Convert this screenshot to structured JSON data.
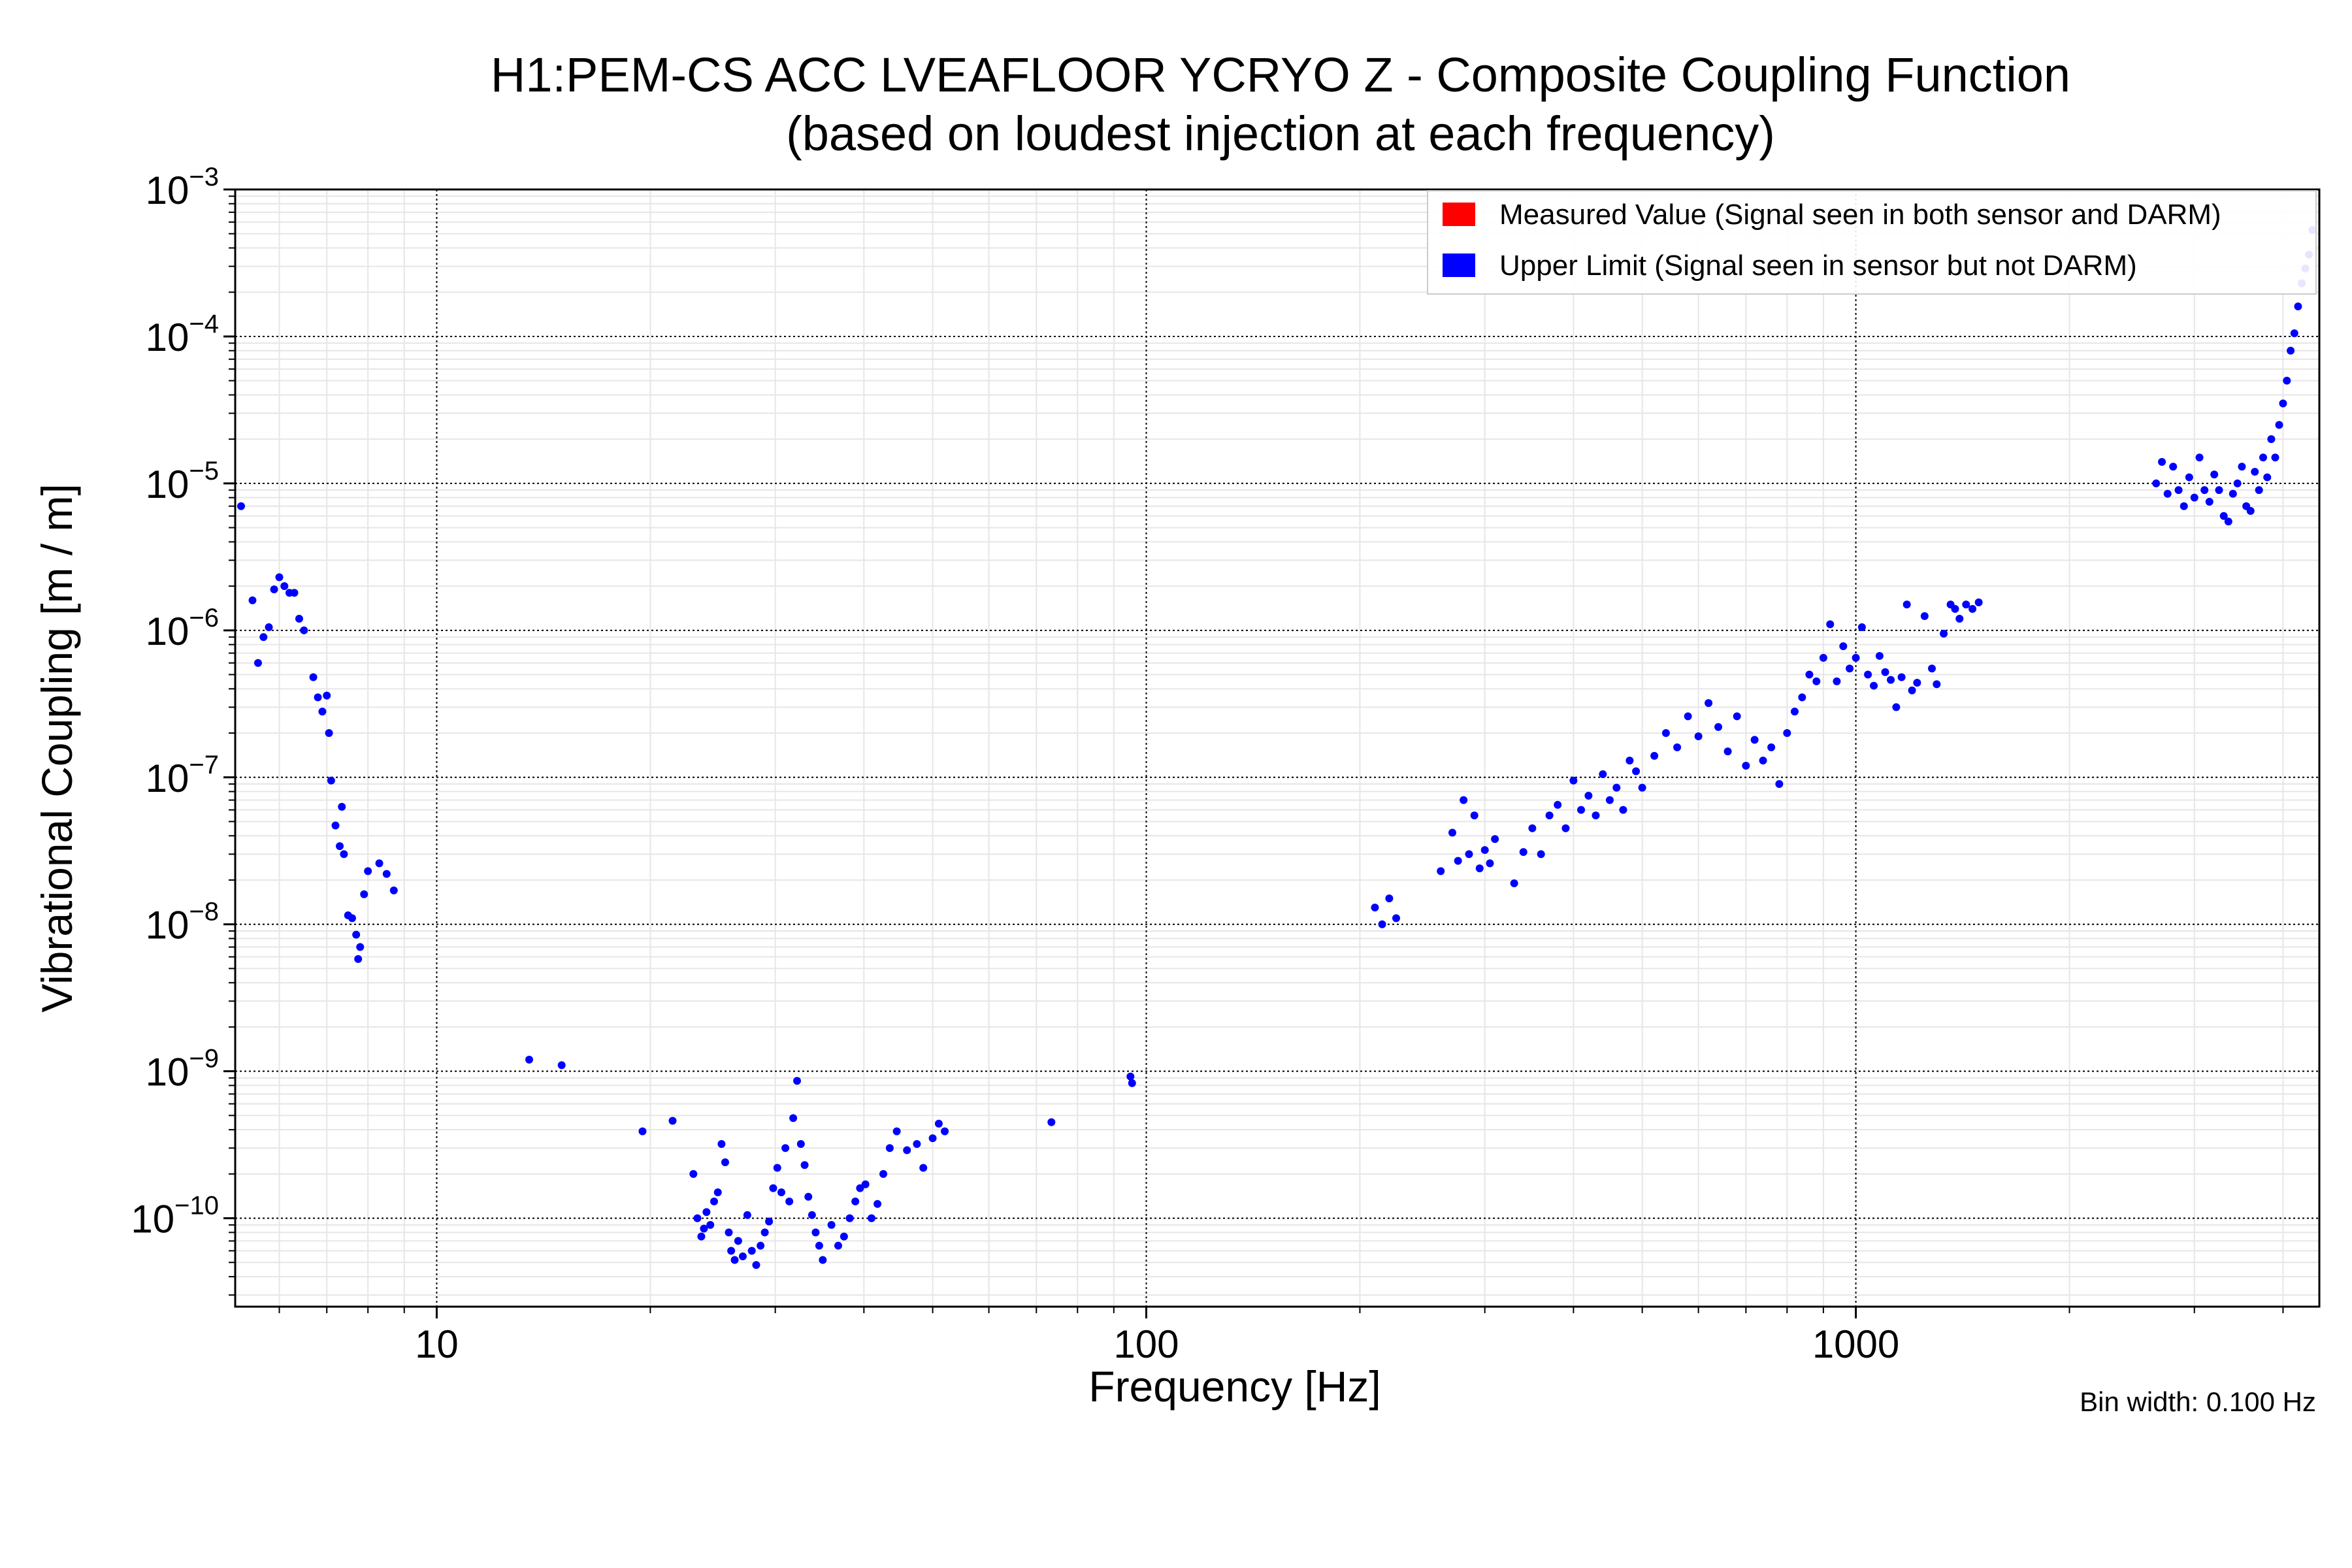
{
  "chart_data": {
    "type": "scatter",
    "title": [
      "H1:PEM-CS ACC LVEAFLOOR YCRYO Z - Composite Coupling Function",
      "(based on loudest injection at each frequency)"
    ],
    "xlabel": "Frequency [Hz]",
    "ylabel": "Vibrational Coupling [m / m]",
    "xscale": "log",
    "yscale": "log",
    "xlim": [
      5.2,
      4500
    ],
    "ylim": [
      2.5e-11,
      0.001
    ],
    "x_ticks": [
      {
        "value": 10,
        "label": "10"
      },
      {
        "value": 100,
        "label": "100"
      },
      {
        "value": 1000,
        "label": "1000"
      }
    ],
    "y_ticks": [
      {
        "value": 1e-10,
        "exp": "−10"
      },
      {
        "value": 1e-09,
        "exp": "−9"
      },
      {
        "value": 1e-08,
        "exp": "−8"
      },
      {
        "value": 1e-07,
        "exp": "−7"
      },
      {
        "value": 1e-06,
        "exp": "−6"
      },
      {
        "value": 1e-05,
        "exp": "−5"
      },
      {
        "value": 0.0001,
        "exp": "−4"
      },
      {
        "value": 0.001,
        "exp": "−3"
      }
    ],
    "y_tick_base": "10",
    "grid": true,
    "legend_position": "top-right",
    "note": "Bin width: 0.100 Hz",
    "series": [
      {
        "name": "Measured Value (Signal seen in both sensor and DARM)",
        "color": "#ff0000",
        "points": []
      },
      {
        "name": "Upper Limit (Signal seen in sensor but not DARM)",
        "color": "#0000ff",
        "points": [
          [
            5.3,
            7e-06
          ],
          [
            5.5,
            1.6e-06
          ],
          [
            5.6,
            6e-07
          ],
          [
            5.7,
            9e-07
          ],
          [
            5.8,
            1.05e-06
          ],
          [
            5.9,
            1.9e-06
          ],
          [
            6.0,
            2.3e-06
          ],
          [
            6.1,
            2e-06
          ],
          [
            6.2,
            1.8e-06
          ],
          [
            6.3,
            1.8e-06
          ],
          [
            6.4,
            1.2e-06
          ],
          [
            6.5,
            1e-06
          ],
          [
            6.7,
            4.8e-07
          ],
          [
            6.8,
            3.5e-07
          ],
          [
            6.9,
            2.8e-07
          ],
          [
            7.0,
            3.6e-07
          ],
          [
            7.05,
            2e-07
          ],
          [
            7.1,
            9.5e-08
          ],
          [
            7.2,
            4.7e-08
          ],
          [
            7.3,
            3.4e-08
          ],
          [
            7.35,
            6.3e-08
          ],
          [
            7.4,
            3e-08
          ],
          [
            7.5,
            1.15e-08
          ],
          [
            7.6,
            1.1e-08
          ],
          [
            7.7,
            8.5e-09
          ],
          [
            7.75,
            5.8e-09
          ],
          [
            7.8,
            7e-09
          ],
          [
            7.9,
            1.6e-08
          ],
          [
            8.0,
            2.3e-08
          ],
          [
            8.3,
            2.6e-08
          ],
          [
            8.5,
            2.2e-08
          ],
          [
            8.7,
            1.7e-08
          ],
          [
            13.5,
            1.2e-09
          ],
          [
            15.0,
            1.1e-09
          ],
          [
            19.5,
            3.9e-10
          ],
          [
            21.5,
            4.6e-10
          ],
          [
            23.0,
            2e-10
          ],
          [
            23.3,
            1e-10
          ],
          [
            23.6,
            7.5e-11
          ],
          [
            23.8,
            8.5e-11
          ],
          [
            24.0,
            1.1e-10
          ],
          [
            24.3,
            9e-11
          ],
          [
            24.6,
            1.3e-10
          ],
          [
            24.9,
            1.5e-10
          ],
          [
            25.2,
            3.2e-10
          ],
          [
            25.5,
            2.4e-10
          ],
          [
            25.8,
            8e-11
          ],
          [
            26.0,
            6e-11
          ],
          [
            26.3,
            5.2e-11
          ],
          [
            26.6,
            7e-11
          ],
          [
            27.0,
            5.5e-11
          ],
          [
            27.4,
            1.05e-10
          ],
          [
            27.8,
            6e-11
          ],
          [
            28.2,
            4.8e-11
          ],
          [
            28.6,
            6.5e-11
          ],
          [
            29.0,
            8e-11
          ],
          [
            29.4,
            9.5e-11
          ],
          [
            29.8,
            1.6e-10
          ],
          [
            30.2,
            2.2e-10
          ],
          [
            30.6,
            1.5e-10
          ],
          [
            31.0,
            3e-10
          ],
          [
            31.4,
            1.3e-10
          ],
          [
            31.8,
            4.8e-10
          ],
          [
            32.2,
            8.6e-10
          ],
          [
            32.6,
            3.2e-10
          ],
          [
            33.0,
            2.3e-10
          ],
          [
            33.4,
            1.4e-10
          ],
          [
            33.8,
            1.05e-10
          ],
          [
            34.2,
            8e-11
          ],
          [
            34.6,
            6.5e-11
          ],
          [
            35.0,
            5.2e-11
          ],
          [
            36.0,
            9e-11
          ],
          [
            36.8,
            6.5e-11
          ],
          [
            37.5,
            7.5e-11
          ],
          [
            38.2,
            1e-10
          ],
          [
            38.9,
            1.3e-10
          ],
          [
            39.5,
            1.6e-10
          ],
          [
            40.2,
            1.7e-10
          ],
          [
            41.0,
            1e-10
          ],
          [
            41.8,
            1.25e-10
          ],
          [
            42.6,
            2e-10
          ],
          [
            43.5,
            3e-10
          ],
          [
            44.5,
            3.9e-10
          ],
          [
            46.0,
            2.9e-10
          ],
          [
            47.5,
            3.2e-10
          ],
          [
            48.5,
            2.2e-10
          ],
          [
            50.0,
            3.5e-10
          ],
          [
            51.0,
            4.4e-10
          ],
          [
            52.0,
            3.9e-10
          ],
          [
            73.5,
            4.5e-10
          ],
          [
            95.0,
            9.2e-10
          ],
          [
            95.5,
            8.3e-10
          ],
          [
            210,
            1.3e-08
          ],
          [
            215,
            1e-08
          ],
          [
            220,
            1.5e-08
          ],
          [
            225,
            1.1e-08
          ],
          [
            260,
            2.3e-08
          ],
          [
            270,
            4.2e-08
          ],
          [
            275,
            2.7e-08
          ],
          [
            280,
            7e-08
          ],
          [
            285,
            3e-08
          ],
          [
            290,
            5.5e-08
          ],
          [
            295,
            2.4e-08
          ],
          [
            300,
            3.2e-08
          ],
          [
            305,
            2.6e-08
          ],
          [
            310,
            3.8e-08
          ],
          [
            330,
            1.9e-08
          ],
          [
            340,
            3.1e-08
          ],
          [
            350,
            4.5e-08
          ],
          [
            360,
            3e-08
          ],
          [
            370,
            5.5e-08
          ],
          [
            380,
            6.5e-08
          ],
          [
            390,
            4.5e-08
          ],
          [
            400,
            9.5e-08
          ],
          [
            410,
            6e-08
          ],
          [
            420,
            7.5e-08
          ],
          [
            430,
            5.5e-08
          ],
          [
            440,
            1.05e-07
          ],
          [
            450,
            7e-08
          ],
          [
            460,
            8.5e-08
          ],
          [
            470,
            6e-08
          ],
          [
            480,
            1.3e-07
          ],
          [
            490,
            1.1e-07
          ],
          [
            500,
            8.5e-08
          ],
          [
            520,
            1.4e-07
          ],
          [
            540,
            2e-07
          ],
          [
            560,
            1.6e-07
          ],
          [
            580,
            2.6e-07
          ],
          [
            600,
            1.9e-07
          ],
          [
            620,
            3.2e-07
          ],
          [
            640,
            2.2e-07
          ],
          [
            660,
            1.5e-07
          ],
          [
            680,
            2.6e-07
          ],
          [
            700,
            1.2e-07
          ],
          [
            720,
            1.8e-07
          ],
          [
            740,
            1.3e-07
          ],
          [
            760,
            1.6e-07
          ],
          [
            780,
            9e-08
          ],
          [
            800,
            2e-07
          ],
          [
            820,
            2.8e-07
          ],
          [
            840,
            3.5e-07
          ],
          [
            860,
            5e-07
          ],
          [
            880,
            4.5e-07
          ],
          [
            900,
            6.5e-07
          ],
          [
            920,
            1.1e-06
          ],
          [
            940,
            4.5e-07
          ],
          [
            960,
            7.8e-07
          ],
          [
            980,
            5.5e-07
          ],
          [
            1000,
            6.5e-07
          ],
          [
            1020,
            1.05e-06
          ],
          [
            1040,
            5e-07
          ],
          [
            1060,
            4.2e-07
          ],
          [
            1080,
            6.7e-07
          ],
          [
            1100,
            5.2e-07
          ],
          [
            1120,
            4.6e-07
          ],
          [
            1140,
            3e-07
          ],
          [
            1160,
            4.8e-07
          ],
          [
            1180,
            1.5e-06
          ],
          [
            1200,
            3.9e-07
          ],
          [
            1220,
            4.4e-07
          ],
          [
            1250,
            1.25e-06
          ],
          [
            1280,
            5.5e-07
          ],
          [
            1300,
            4.3e-07
          ],
          [
            1330,
            9.5e-07
          ],
          [
            1360,
            1.5e-06
          ],
          [
            1380,
            1.4e-06
          ],
          [
            1400,
            1.2e-06
          ],
          [
            1430,
            1.5e-06
          ],
          [
            1460,
            1.4e-06
          ],
          [
            1490,
            1.55e-06
          ],
          [
            2650,
            1e-05
          ],
          [
            2700,
            1.4e-05
          ],
          [
            2750,
            8.5e-06
          ],
          [
            2800,
            1.3e-05
          ],
          [
            2850,
            9e-06
          ],
          [
            2900,
            7e-06
          ],
          [
            2950,
            1.1e-05
          ],
          [
            3000,
            8e-06
          ],
          [
            3050,
            1.5e-05
          ],
          [
            3100,
            9e-06
          ],
          [
            3150,
            7.5e-06
          ],
          [
            3200,
            1.15e-05
          ],
          [
            3250,
            9e-06
          ],
          [
            3300,
            6e-06
          ],
          [
            3350,
            5.5e-06
          ],
          [
            3400,
            8.5e-06
          ],
          [
            3450,
            1e-05
          ],
          [
            3500,
            1.3e-05
          ],
          [
            3550,
            7e-06
          ],
          [
            3600,
            6.5e-06
          ],
          [
            3650,
            1.2e-05
          ],
          [
            3700,
            9e-06
          ],
          [
            3750,
            1.5e-05
          ],
          [
            3800,
            1.1e-05
          ],
          [
            3850,
            2e-05
          ],
          [
            3900,
            1.5e-05
          ],
          [
            3950,
            2.5e-05
          ],
          [
            4000,
            3.5e-05
          ],
          [
            4050,
            5e-05
          ],
          [
            4100,
            8e-05
          ],
          [
            4150,
            0.000105
          ],
          [
            4200,
            0.00016
          ],
          [
            4250,
            0.00023
          ],
          [
            4300,
            0.00029
          ],
          [
            4350,
            0.00036
          ],
          [
            4400,
            0.00053
          ]
        ]
      }
    ]
  }
}
